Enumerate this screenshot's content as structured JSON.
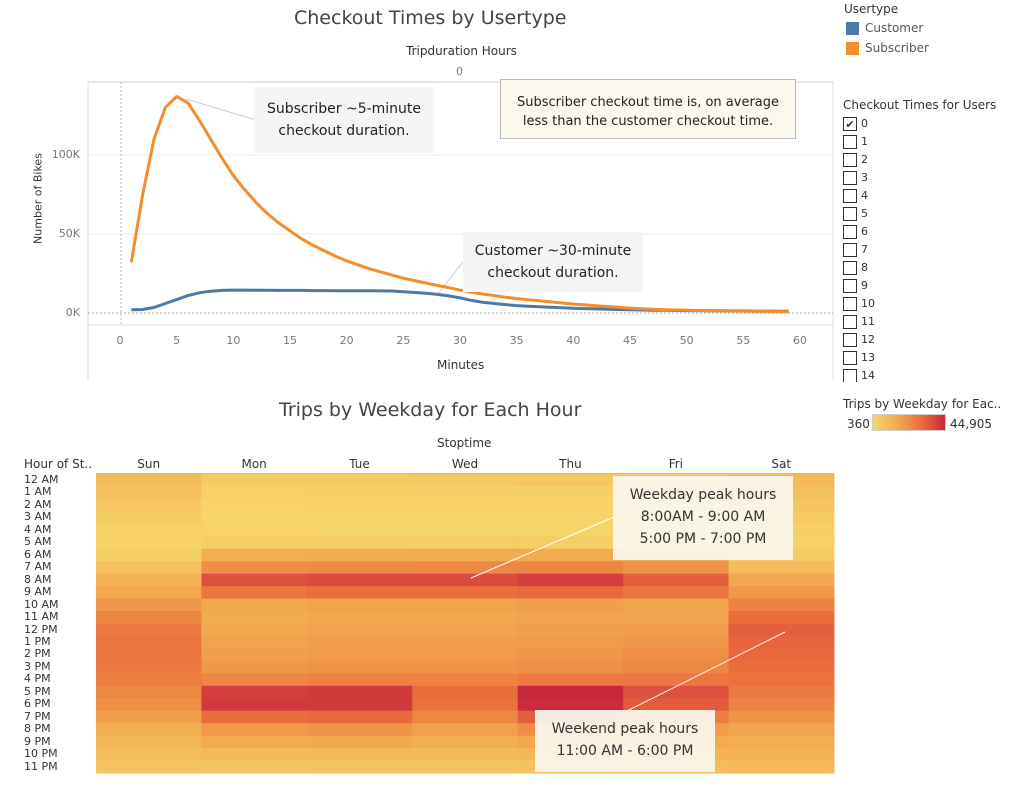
{
  "line_chart": {
    "title": "Checkout Times by Usertype",
    "top_header": "Tripduration Hours",
    "top_header_value": "0",
    "xlabel": "Minutes",
    "ylabel": "Number of Bikes",
    "annotation_subscriber": "Subscriber ~5-minute checkout duration.",
    "annotation_customer": "Customer ~30-minute checkout duration.",
    "annotation_note": "Subscriber checkout time is, on average less than the customer checkout time."
  },
  "legend": {
    "title": "Usertype",
    "items": [
      {
        "label": "Customer",
        "color": "#4e79a7"
      },
      {
        "label": "Subscriber",
        "color": "#f28e2b"
      }
    ]
  },
  "filter": {
    "title": "Checkout Times for Users",
    "options": [
      {
        "label": "0",
        "checked": true
      },
      {
        "label": "1",
        "checked": false
      },
      {
        "label": "2",
        "checked": false
      },
      {
        "label": "3",
        "checked": false
      },
      {
        "label": "4",
        "checked": false
      },
      {
        "label": "5",
        "checked": false
      },
      {
        "label": "6",
        "checked": false
      },
      {
        "label": "7",
        "checked": false
      },
      {
        "label": "8",
        "checked": false
      },
      {
        "label": "9",
        "checked": false
      },
      {
        "label": "10",
        "checked": false
      },
      {
        "label": "11",
        "checked": false
      },
      {
        "label": "12",
        "checked": false
      },
      {
        "label": "13",
        "checked": false
      },
      {
        "label": "14",
        "checked": false
      }
    ]
  },
  "heatmap_legend": {
    "title": "Trips by Weekday for Eac..",
    "min_label": "360",
    "max_label": "44,905"
  },
  "heatmap": {
    "title": "Trips by Weekday for Each Hour",
    "column_header": "Stoptime",
    "row_header": "Hour of St..",
    "annotation_weekday": [
      "Weekday peak hours",
      "8:00AM - 9:00 AM",
      "5:00 PM - 7:00 PM"
    ],
    "annotation_weekend": [
      "Weekend peak hours",
      "11:00 AM - 6:00 PM"
    ]
  },
  "chart_data": [
    {
      "type": "line",
      "title": "Checkout Times by Usertype",
      "xlabel": "Minutes",
      "ylabel": "Number of Bikes",
      "xlim": [
        0,
        60
      ],
      "ylim": [
        -6000,
        145000
      ],
      "x_ticks": [
        "0",
        "5",
        "10",
        "15",
        "20",
        "25",
        "30",
        "35",
        "40",
        "45",
        "50",
        "55",
        "60"
      ],
      "y_ticks": [
        {
          "value": 0,
          "label": "0K"
        },
        {
          "value": 50000,
          "label": "50K"
        },
        {
          "value": 100000,
          "label": "100K"
        }
      ],
      "series": [
        {
          "name": "Subscriber",
          "color": "#f28e2b",
          "x": [
            1,
            2,
            3,
            4,
            5,
            6,
            7,
            8,
            9,
            10,
            11,
            12,
            13,
            14,
            15,
            16,
            17,
            18,
            19,
            20,
            21,
            22,
            23,
            24,
            25,
            26,
            27,
            28,
            29,
            30,
            31,
            32,
            33,
            34,
            35,
            36,
            37,
            38,
            39,
            40,
            41,
            42,
            43,
            44,
            45,
            46,
            47,
            48,
            49,
            50,
            51,
            52,
            53,
            54,
            55,
            56,
            57,
            58,
            59
          ],
          "values": [
            32000,
            75000,
            110000,
            130000,
            137000,
            133000,
            122000,
            110000,
            98000,
            87000,
            78000,
            70000,
            63000,
            57000,
            52000,
            47000,
            43000,
            39500,
            36000,
            33000,
            30500,
            28000,
            26000,
            24000,
            22000,
            20500,
            19000,
            17500,
            16000,
            14500,
            13200,
            12000,
            11000,
            10000,
            9200,
            8400,
            7700,
            7000,
            6300,
            5700,
            5100,
            4600,
            4100,
            3600,
            3100,
            2700,
            2400,
            2100,
            1900,
            1700,
            1600,
            1500,
            1400,
            1300,
            1200,
            1100,
            1000,
            900,
            800
          ]
        },
        {
          "name": "Customer",
          "color": "#4e79a7",
          "x": [
            1,
            2,
            3,
            4,
            5,
            6,
            7,
            8,
            9,
            10,
            11,
            12,
            13,
            14,
            15,
            16,
            17,
            18,
            19,
            20,
            21,
            22,
            23,
            24,
            25,
            26,
            27,
            28,
            29,
            30,
            31,
            32,
            33,
            34,
            35,
            36,
            37,
            38,
            39,
            40,
            41,
            42,
            43,
            44,
            45,
            46,
            47,
            48,
            49,
            50,
            51,
            52,
            53,
            54,
            55,
            56,
            57,
            58,
            59
          ],
          "values": [
            2000,
            2200,
            3500,
            6000,
            8500,
            11000,
            12800,
            13800,
            14300,
            14500,
            14500,
            14400,
            14400,
            14300,
            14300,
            14300,
            14200,
            14200,
            14100,
            14100,
            14100,
            14100,
            14000,
            13900,
            13500,
            13000,
            12500,
            11800,
            10800,
            9600,
            8000,
            6800,
            6000,
            5300,
            4700,
            4300,
            3900,
            3600,
            3300,
            3000,
            2800,
            2600,
            2400,
            2200,
            2000,
            1900,
            1800,
            1700,
            1600,
            1500,
            1500,
            1400,
            1400,
            1300,
            1300,
            1200,
            1200,
            1100,
            1100
          ]
        }
      ]
    },
    {
      "type": "heatmap",
      "title": "Trips by Weekday for Each Hour",
      "columns": [
        "Sun",
        "Mon",
        "Tue",
        "Wed",
        "Thu",
        "Fri",
        "Sat"
      ],
      "rows": [
        "12 AM",
        "1 AM",
        "2 AM",
        "3 AM",
        "4 AM",
        "5 AM",
        "6 AM",
        "7 AM",
        "8 AM",
        "9 AM",
        "10 AM",
        "11 AM",
        "12 PM",
        "1 PM",
        "2 PM",
        "3 PM",
        "4 PM",
        "5 PM",
        "6 PM",
        "7 PM",
        "8 PM",
        "9 PM",
        "10 PM",
        "11 PM"
      ],
      "color_range": [
        360,
        44905
      ],
      "values": [
        [
          9500,
          4000,
          4500,
          5000,
          5500,
          6000,
          10000
        ],
        [
          7500,
          2000,
          2300,
          2500,
          2800,
          3000,
          8000
        ],
        [
          5000,
          1200,
          1300,
          1500,
          1700,
          1900,
          6000
        ],
        [
          3500,
          800,
          900,
          1000,
          1100,
          1200,
          4000
        ],
        [
          2000,
          1000,
          1000,
          1100,
          1200,
          1200,
          2500
        ],
        [
          1500,
          3500,
          3600,
          3700,
          3800,
          3700,
          2000
        ],
        [
          3000,
          14000,
          14500,
          14800,
          15000,
          14000,
          4500
        ],
        [
          7000,
          22000,
          23000,
          23500,
          24000,
          21000,
          9000
        ],
        [
          12000,
          36000,
          37000,
          37500,
          40000,
          33000,
          16000
        ],
        [
          16000,
          28000,
          30000,
          30000,
          31000,
          28000,
          20000
        ],
        [
          20000,
          16000,
          17000,
          17000,
          18000,
          17000,
          25000
        ],
        [
          24000,
          15000,
          16000,
          16000,
          17000,
          17000,
          30000
        ],
        [
          27000,
          16000,
          17000,
          17000,
          18000,
          19000,
          33000
        ],
        [
          28000,
          17000,
          18000,
          18000,
          19000,
          20000,
          32000
        ],
        [
          28000,
          18000,
          19000,
          19000,
          20000,
          22000,
          31000
        ],
        [
          27000,
          20000,
          21000,
          21000,
          22000,
          24000,
          30000
        ],
        [
          26000,
          24000,
          25000,
          25000,
          27000,
          28000,
          29000
        ],
        [
          24000,
          40000,
          41000,
          30000,
          44905,
          36000,
          27000
        ],
        [
          22000,
          41000,
          41000,
          29000,
          44000,
          34000,
          25000
        ],
        [
          18000,
          30000,
          31000,
          24000,
          33000,
          26000,
          21000
        ],
        [
          14000,
          20000,
          21000,
          18000,
          22000,
          19000,
          17000
        ],
        [
          11000,
          15000,
          15500,
          14000,
          16000,
          15000,
          14000
        ],
        [
          8500,
          10000,
          10500,
          10000,
          11000,
          12000,
          12000
        ],
        [
          6500,
          6000,
          6500,
          6500,
          7000,
          9000,
          10500
        ]
      ]
    }
  ]
}
